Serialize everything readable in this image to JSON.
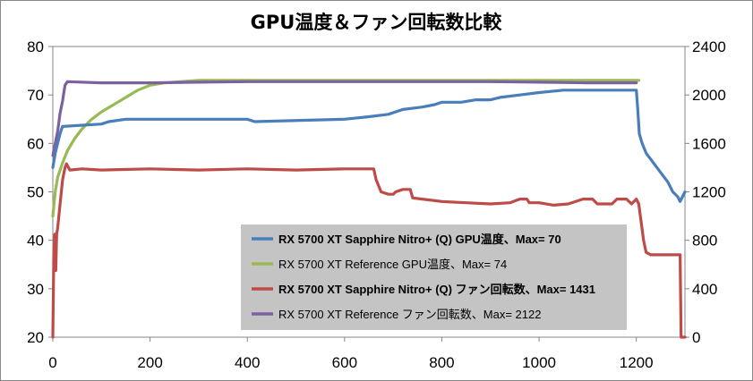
{
  "chart_data": {
    "type": "line",
    "title": "GPU温度＆ファン回転数比較",
    "x_ticks": [
      "0",
      "200",
      "400",
      "600",
      "800",
      "1000",
      "1200"
    ],
    "xlim": [
      0,
      1300
    ],
    "y_left_ticks": [
      "20",
      "30",
      "40",
      "50",
      "60",
      "70",
      "80"
    ],
    "ylim_left": [
      20,
      80
    ],
    "y_right_ticks": [
      "0",
      "400",
      "800",
      "1200",
      "1600",
      "2000",
      "2400"
    ],
    "ylim_right": [
      0,
      2400
    ],
    "grid": false,
    "legend_position": "bottom-right inside plot",
    "series": [
      {
        "name": "RX 5700 XT Sapphire Nitro+ (Q) GPU温度、Max= 70",
        "axis": "left",
        "color": "#4a7ebb",
        "bold_legend": true,
        "points": [
          [
            0,
            55
          ],
          [
            5,
            58
          ],
          [
            10,
            60
          ],
          [
            15,
            62
          ],
          [
            18,
            63
          ],
          [
            20,
            63.5
          ],
          [
            100,
            64
          ],
          [
            115,
            64.5
          ],
          [
            150,
            65
          ],
          [
            400,
            65
          ],
          [
            415,
            64.5
          ],
          [
            600,
            65
          ],
          [
            650,
            65.5
          ],
          [
            690,
            66
          ],
          [
            720,
            67
          ],
          [
            760,
            67.5
          ],
          [
            785,
            68
          ],
          [
            800,
            68.5
          ],
          [
            840,
            68.5
          ],
          [
            870,
            69
          ],
          [
            900,
            69
          ],
          [
            920,
            69.5
          ],
          [
            960,
            70
          ],
          [
            1000,
            70.5
          ],
          [
            1050,
            71
          ],
          [
            1100,
            71
          ],
          [
            1150,
            71
          ],
          [
            1200,
            71
          ],
          [
            1203,
            67
          ],
          [
            1206,
            62
          ],
          [
            1212,
            60
          ],
          [
            1220,
            58
          ],
          [
            1235,
            56
          ],
          [
            1250,
            54
          ],
          [
            1265,
            52
          ],
          [
            1275,
            50
          ],
          [
            1285,
            49
          ],
          [
            1290,
            48
          ],
          [
            1295,
            49
          ],
          [
            1300,
            50
          ]
        ]
      },
      {
        "name": "RX 5700 XT Reference GPU温度、Max= 74",
        "axis": "left",
        "color": "#98b954",
        "bold_legend": false,
        "points": [
          [
            0,
            45
          ],
          [
            5,
            50
          ],
          [
            10,
            53
          ],
          [
            20,
            56
          ],
          [
            30,
            58.5
          ],
          [
            45,
            61
          ],
          [
            60,
            63
          ],
          [
            80,
            65
          ],
          [
            100,
            66.5
          ],
          [
            125,
            68
          ],
          [
            150,
            69.5
          ],
          [
            175,
            71
          ],
          [
            200,
            72
          ],
          [
            230,
            72.5
          ],
          [
            300,
            73
          ],
          [
            600,
            73
          ],
          [
            900,
            73
          ],
          [
            1000,
            73
          ],
          [
            1100,
            73
          ],
          [
            1200,
            73
          ],
          [
            1205,
            73
          ]
        ]
      },
      {
        "name": "RX 5700 XT Sapphire Nitro+ (Q) ファン回転数、Max= 1431",
        "axis": "right",
        "color": "#be4b48",
        "bold_legend": true,
        "points": [
          [
            0,
            0
          ],
          [
            2,
            700
          ],
          [
            4,
            850
          ],
          [
            6,
            550
          ],
          [
            8,
            850
          ],
          [
            10,
            900
          ],
          [
            15,
            1100
          ],
          [
            20,
            1300
          ],
          [
            25,
            1400
          ],
          [
            28,
            1431
          ],
          [
            35,
            1380
          ],
          [
            60,
            1390
          ],
          [
            100,
            1380
          ],
          [
            200,
            1390
          ],
          [
            300,
            1380
          ],
          [
            400,
            1390
          ],
          [
            500,
            1380
          ],
          [
            600,
            1390
          ],
          [
            660,
            1390
          ],
          [
            665,
            1300
          ],
          [
            675,
            1200
          ],
          [
            690,
            1180
          ],
          [
            700,
            1180
          ],
          [
            705,
            1200
          ],
          [
            720,
            1220
          ],
          [
            735,
            1220
          ],
          [
            740,
            1150
          ],
          [
            760,
            1140
          ],
          [
            800,
            1120
          ],
          [
            850,
            1110
          ],
          [
            900,
            1100
          ],
          [
            940,
            1110
          ],
          [
            960,
            1140
          ],
          [
            975,
            1140
          ],
          [
            980,
            1110
          ],
          [
            1000,
            1110
          ],
          [
            1030,
            1090
          ],
          [
            1060,
            1100
          ],
          [
            1090,
            1140
          ],
          [
            1110,
            1140
          ],
          [
            1120,
            1100
          ],
          [
            1150,
            1100
          ],
          [
            1160,
            1140
          ],
          [
            1180,
            1140
          ],
          [
            1190,
            1100
          ],
          [
            1200,
            1140
          ],
          [
            1205,
            1100
          ],
          [
            1210,
            950
          ],
          [
            1215,
            800
          ],
          [
            1220,
            700
          ],
          [
            1230,
            680
          ],
          [
            1290,
            680
          ],
          [
            1292,
            0
          ],
          [
            1300,
            0
          ]
        ]
      },
      {
        "name": "RX 5700 XT Reference ファン回転数、Max= 2122",
        "axis": "right",
        "color": "#7d60a0",
        "bold_legend": false,
        "points": [
          [
            0,
            1500
          ],
          [
            5,
            1600
          ],
          [
            10,
            1700
          ],
          [
            15,
            1850
          ],
          [
            20,
            1950
          ],
          [
            25,
            2080
          ],
          [
            30,
            2110
          ],
          [
            100,
            2100
          ],
          [
            200,
            2100
          ],
          [
            300,
            2105
          ],
          [
            400,
            2110
          ],
          [
            500,
            2110
          ],
          [
            600,
            2110
          ],
          [
            700,
            2110
          ],
          [
            800,
            2110
          ],
          [
            900,
            2110
          ],
          [
            1000,
            2105
          ],
          [
            1100,
            2100
          ],
          [
            1200,
            2100
          ]
        ]
      }
    ]
  }
}
